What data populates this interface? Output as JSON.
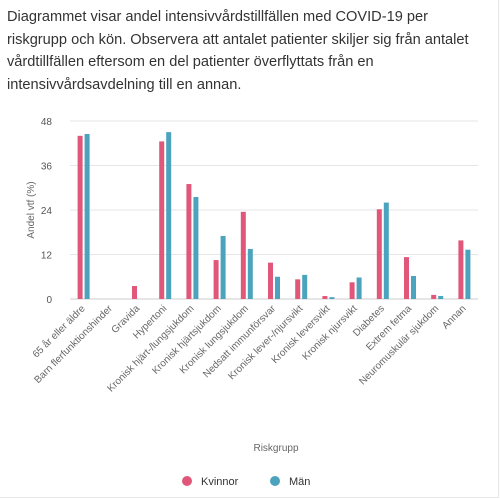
{
  "description": "Diagrammet visar andel intensivvårdstillfällen med COVID-19 per riskgrupp och kön. Observera att antalet patienter skiljer sig från antalet vårdtillfällen eftersom en del patienter överflyttats från en intensivvårdsavdelning till en annan.",
  "colors": {
    "kvinnor": "#e0577a",
    "man": "#4ba3bd"
  },
  "chart_data": {
    "type": "bar",
    "title": "",
    "xlabel": "Riskgrupp",
    "ylabel": "Andel vtf (%)",
    "ylim": [
      0,
      48
    ],
    "yticks": [
      0,
      12,
      24,
      36,
      48
    ],
    "grid": true,
    "legend_position": "bottom",
    "categories": [
      "65 år eller äldre",
      "Barn flerfunktionshinder",
      "Gravida",
      "Hypertoni",
      "Kronisk hjärt-/lungsjukdom",
      "Kronisk hjärtsjukdom",
      "Kronisk lungsjukdom",
      "Nedsatt immunförsvar",
      "Kronisk lever-/njursvikt",
      "Kronisk leversvikt",
      "Kronisk njursvikt",
      "Diabetes",
      "Extrem fetma",
      "Neuromuskulär sjukdom",
      "Annan"
    ],
    "series": [
      {
        "name": "Kvinnor",
        "values": [
          44,
          0,
          3.5,
          42.5,
          31,
          10.5,
          23.5,
          9.8,
          5.3,
          0.8,
          4.5,
          24.2,
          11.3,
          1.1,
          15.8
        ]
      },
      {
        "name": "Män",
        "values": [
          44.5,
          0,
          0,
          45,
          27.5,
          17,
          13.5,
          6,
          6.5,
          0.5,
          5.8,
          26,
          6.2,
          0.8,
          13.3
        ]
      }
    ]
  }
}
